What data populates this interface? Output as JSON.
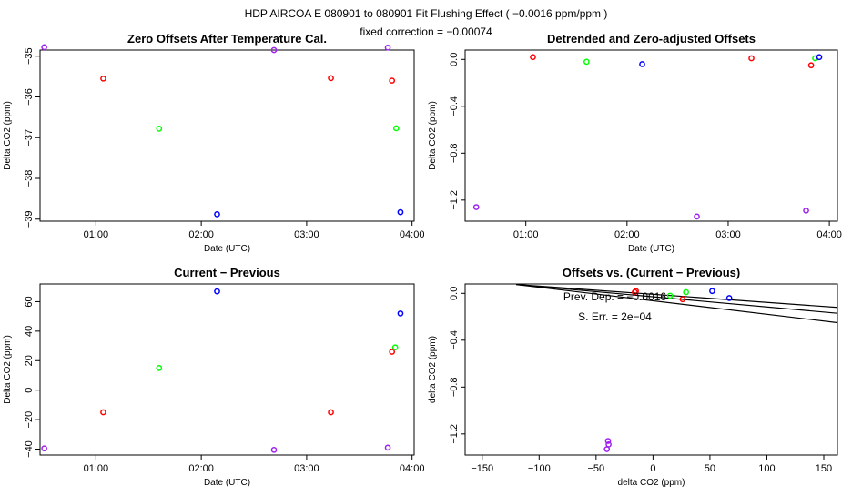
{
  "header": {
    "line1": "HDP    AIRCOA E    080901 to 080901    Fit Flushing Effect ( −0.0016 ppm/ppm )",
    "line2": "fixed correction = −0.00074"
  },
  "colors": {
    "red": "#ff0000",
    "green": "#00ff00",
    "blue": "#0000ff",
    "purple": "#a020f0",
    "black": "#000000"
  },
  "chart_data": [
    {
      "id": "zero-offsets",
      "type": "scatter",
      "title": "Zero Offsets After Temperature Cal.",
      "xlabel": "Date (UTC)",
      "ylabel": "Delta CO2 (ppm)",
      "xlim": [
        0.47,
        4.02
      ],
      "ylim": [
        -39.05,
        -34.85
      ],
      "xticks": [
        1,
        2,
        3,
        4
      ],
      "xticklabels": [
        "01:00",
        "02:00",
        "03:00",
        "04:00"
      ],
      "yticks": [
        -35,
        -36,
        -37,
        -38,
        -39
      ],
      "yticklabels": [
        "−35",
        "−36",
        "−37",
        "−38",
        "−39"
      ],
      "points": [
        {
          "x": 0.51,
          "y": -34.78,
          "c": "purple"
        },
        {
          "x": 1.07,
          "y": -35.55,
          "c": "red"
        },
        {
          "x": 1.6,
          "y": -36.78,
          "c": "green"
        },
        {
          "x": 2.15,
          "y": -38.88,
          "c": "blue"
        },
        {
          "x": 2.69,
          "y": -34.85,
          "c": "purple"
        },
        {
          "x": 3.23,
          "y": -35.54,
          "c": "red"
        },
        {
          "x": 3.77,
          "y": -34.79,
          "c": "purple"
        },
        {
          "x": 3.81,
          "y": -35.6,
          "c": "red"
        },
        {
          "x": 3.85,
          "y": -36.77,
          "c": "green"
        },
        {
          "x": 3.89,
          "y": -38.83,
          "c": "blue"
        }
      ]
    },
    {
      "id": "detrended",
      "type": "scatter",
      "title": "Detrended and Zero-adjusted Offsets",
      "xlabel": "Date (UTC)",
      "ylabel": "Delta CO2 (ppm)",
      "xlim": [
        0.4,
        4.08
      ],
      "ylim": [
        -1.38,
        0.08
      ],
      "xticks": [
        1,
        2,
        3,
        4
      ],
      "xticklabels": [
        "01:00",
        "02:00",
        "03:00",
        "04:00"
      ],
      "yticks": [
        0,
        -0.4,
        -0.8,
        -1.2
      ],
      "yticklabels": [
        "0.0",
        "−0.4",
        "−0.8",
        "−1.2"
      ],
      "points": [
        {
          "x": 0.51,
          "y": -1.26,
          "c": "purple"
        },
        {
          "x": 1.07,
          "y": 0.02,
          "c": "red"
        },
        {
          "x": 1.6,
          "y": -0.02,
          "c": "green"
        },
        {
          "x": 2.15,
          "y": -0.04,
          "c": "blue"
        },
        {
          "x": 2.69,
          "y": -1.34,
          "c": "purple"
        },
        {
          "x": 3.23,
          "y": 0.01,
          "c": "red"
        },
        {
          "x": 3.77,
          "y": -1.29,
          "c": "purple"
        },
        {
          "x": 3.82,
          "y": -0.05,
          "c": "red"
        },
        {
          "x": 3.86,
          "y": 0.01,
          "c": "green"
        },
        {
          "x": 3.9,
          "y": 0.02,
          "c": "blue"
        }
      ]
    },
    {
      "id": "current-previous",
      "type": "scatter",
      "title": "Current − Previous",
      "xlabel": "Date (UTC)",
      "ylabel": "Delta CO2 (ppm)",
      "xlim": [
        0.47,
        4.02
      ],
      "ylim": [
        -44,
        72
      ],
      "xticks": [
        1,
        2,
        3,
        4
      ],
      "xticklabels": [
        "01:00",
        "02:00",
        "03:00",
        "04:00"
      ],
      "yticks": [
        60,
        40,
        20,
        0,
        -20,
        -40
      ],
      "yticklabels": [
        "60",
        "40",
        "20",
        "0",
        "−20",
        "−40"
      ],
      "points": [
        {
          "x": 0.51,
          "y": -39.5,
          "c": "purple"
        },
        {
          "x": 1.07,
          "y": -15,
          "c": "red"
        },
        {
          "x": 1.6,
          "y": 15,
          "c": "green"
        },
        {
          "x": 2.15,
          "y": 67,
          "c": "blue"
        },
        {
          "x": 2.69,
          "y": -40.5,
          "c": "purple"
        },
        {
          "x": 3.23,
          "y": -15,
          "c": "red"
        },
        {
          "x": 3.77,
          "y": -39,
          "c": "purple"
        },
        {
          "x": 3.81,
          "y": 26,
          "c": "red"
        },
        {
          "x": 3.84,
          "y": 29,
          "c": "green"
        },
        {
          "x": 3.89,
          "y": 52,
          "c": "blue"
        }
      ]
    },
    {
      "id": "offsets-vs-diff",
      "type": "scatter",
      "title": "Offsets vs. (Current − Previous)",
      "xlabel": "delta CO2 (ppm)",
      "ylabel": "delta CO2 (ppm)",
      "xlim": [
        -165,
        162
      ],
      "ylim": [
        -1.38,
        0.08
      ],
      "xticks": [
        -150,
        -100,
        -50,
        0,
        50,
        100,
        150
      ],
      "xticklabels": [
        "−150",
        "−100",
        "−50",
        "0",
        "50",
        "100",
        "150"
      ],
      "yticks": [
        0,
        -0.4,
        -0.8,
        -1.2
      ],
      "yticklabels": [
        "0.0",
        "−0.4",
        "−0.8",
        "−1.2"
      ],
      "annotations": [
        "Prev. Dep. = −0.0016",
        "S. Err. =  2e−04"
      ],
      "lines": [
        {
          "x": [
            -120,
            162
          ],
          "y": [
            0.075,
            -0.17
          ]
        },
        {
          "x": [
            -120,
            162
          ],
          "y": [
            0.075,
            -0.25
          ]
        },
        {
          "x": [
            -120,
            162
          ],
          "y": [
            0.075,
            -0.12
          ]
        }
      ],
      "points": [
        {
          "x": -39.5,
          "y": -1.26,
          "c": "purple"
        },
        {
          "x": -40.5,
          "y": -1.33,
          "c": "purple"
        },
        {
          "x": -39,
          "y": -1.29,
          "c": "purple"
        },
        {
          "x": -15,
          "y": 0.02,
          "c": "red"
        },
        {
          "x": -16,
          "y": 0.01,
          "c": "red"
        },
        {
          "x": 15,
          "y": -0.02,
          "c": "green"
        },
        {
          "x": 29,
          "y": 0.01,
          "c": "green"
        },
        {
          "x": 26,
          "y": -0.05,
          "c": "red"
        },
        {
          "x": 52,
          "y": 0.02,
          "c": "blue"
        },
        {
          "x": 67,
          "y": -0.04,
          "c": "blue"
        }
      ]
    }
  ]
}
